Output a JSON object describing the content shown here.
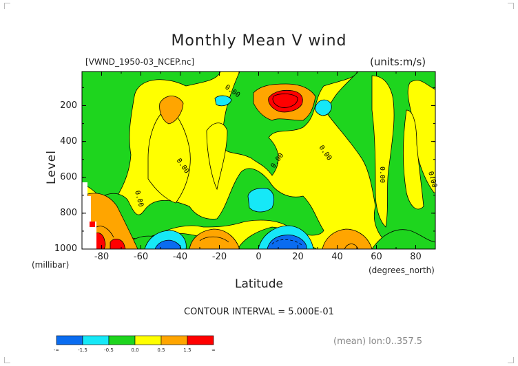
{
  "title": "Monthly Mean V wind",
  "file_label": "[VWND_1950-03_NCEP.nc]",
  "units_label": "(units:m/s)",
  "contour_interval": "CONTOUR INTERVAL = 5.000E-01",
  "mean_label": "(mean) lon:0..357.5",
  "colors": {
    "blue": "#0a6cf0",
    "cyan": "#16e8f7",
    "green": "#1ed51e",
    "yellow": "#ffff00",
    "orange": "#ffa500",
    "red": "#ff0000"
  },
  "chart_data": {
    "type": "contour",
    "title": "Monthly Mean V wind",
    "xlabel": "Latitude",
    "ylabel": "Level",
    "x_unit": "(degrees_north)",
    "y_unit": "(millibar)",
    "xlim": [
      -90,
      90
    ],
    "ylim": [
      1000,
      10
    ],
    "x_ticks": [
      -80,
      -60,
      -40,
      -20,
      0,
      20,
      40,
      60,
      80
    ],
    "x_tick_labels": [
      "-80",
      "-60",
      "-40",
      "-20",
      "0",
      "20",
      "40",
      "60",
      "80"
    ],
    "y_ticks": [
      200,
      400,
      600,
      800,
      1000
    ],
    "y_tick_labels": [
      "200",
      "400",
      "600",
      "800",
      "1000"
    ],
    "contour_labels": [
      "0.00",
      "0.00",
      "0.00",
      "0.00",
      "0.00",
      "0.00",
      "0.00"
    ],
    "colorbar": {
      "boundaries": [
        -1.5,
        -0.5,
        0.0,
        0.5,
        1.5
      ],
      "labels": [
        "-∞",
        "-1.5",
        "-0.5",
        "0.0",
        "0.5",
        "1.5",
        "∞"
      ],
      "colors": [
        "#0a6cf0",
        "#16e8f7",
        "#1ed51e",
        "#ffff00",
        "#ffa500",
        "#ff0000"
      ]
    }
  }
}
